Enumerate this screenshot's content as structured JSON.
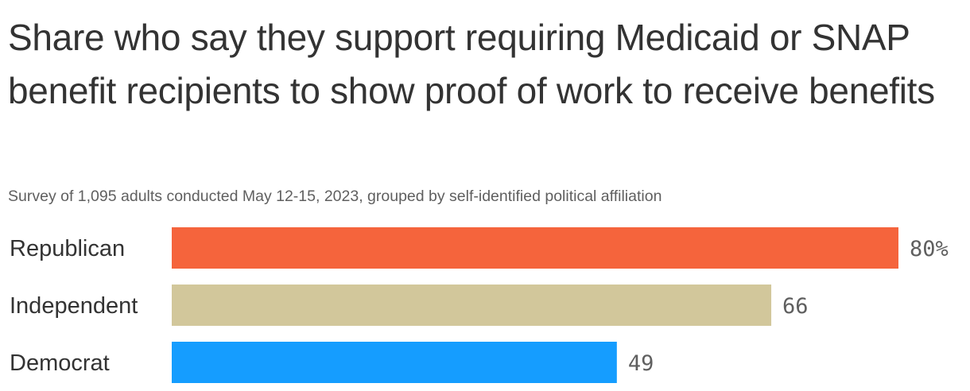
{
  "title": "Share who say they support requiring Medicaid or SNAP benefit recipients to show proof of work to receive benefits",
  "subtitle": "Survey of 1,095 adults conducted May 12-15, 2023, grouped by self-identified political affiliation",
  "chart_data": {
    "type": "bar",
    "orientation": "horizontal",
    "title": "Share who say they support requiring Medicaid or SNAP benefit recipients to show proof of work to receive benefits",
    "subtitle": "Survey of 1,095 adults conducted May 12-15, 2023, grouped by self-identified political affiliation",
    "categories": [
      "Republican",
      "Independent",
      "Democrat"
    ],
    "values": [
      80,
      66,
      49
    ],
    "value_labels": [
      "80%",
      "66",
      "49"
    ],
    "colors": [
      "#f5643c",
      "#d2c79b",
      "#159dff"
    ],
    "xlabel": "",
    "ylabel": "",
    "xlim": [
      0,
      80
    ],
    "grid": false,
    "legend": "none"
  }
}
